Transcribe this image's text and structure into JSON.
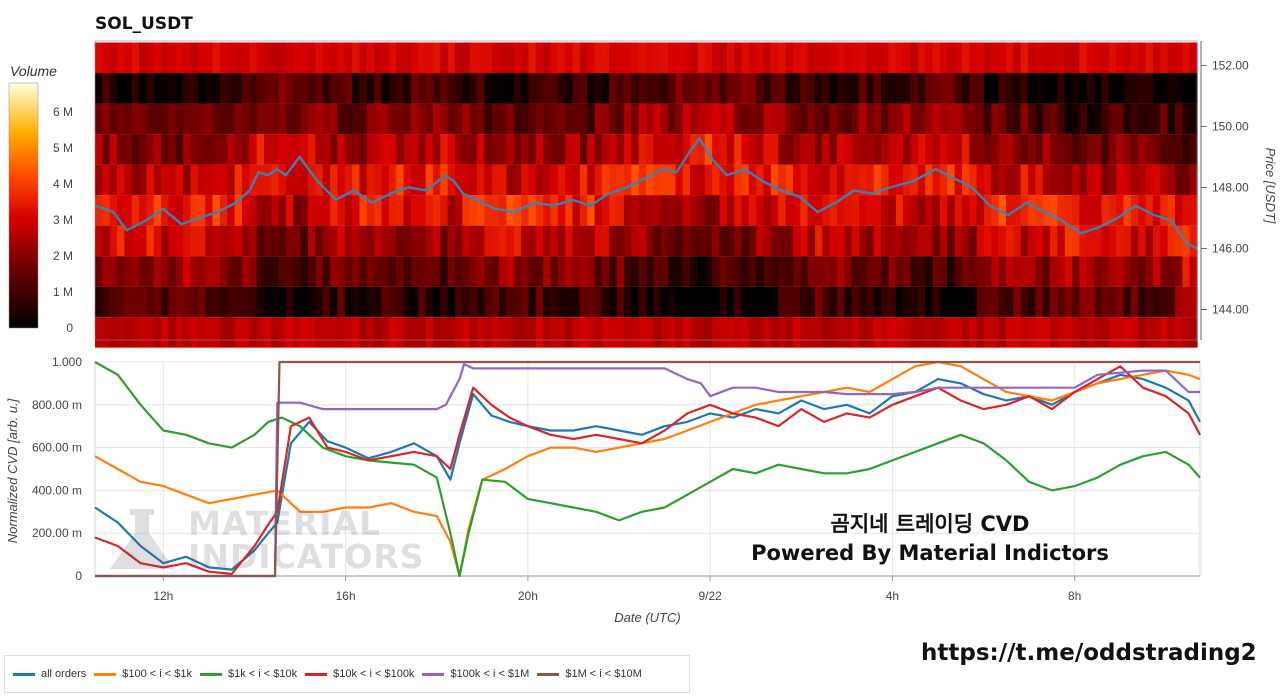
{
  "title": "SOL_USDT",
  "chart_data": [
    {
      "type": "heatmap",
      "title": "SOL_USDT",
      "colorbar": {
        "label": "Volume",
        "ticks": [
          "0",
          "1 M",
          "2 M",
          "3 M",
          "4 M",
          "5 M",
          "6 M"
        ],
        "range": [
          0,
          6800000
        ]
      },
      "y_axis": {
        "label": "Price [USDT]",
        "ticks": [
          "144.00",
          "146.00",
          "148.00",
          "150.00",
          "152.00"
        ],
        "range": [
          143.0,
          152.8
        ]
      },
      "price_bins": [
        143.25,
        144.25,
        145.25,
        146.25,
        147.25,
        148.25,
        149.25,
        150.25,
        151.25,
        152.25
      ],
      "x_range_hours": [
        10.5,
        34.75
      ],
      "series": [
        {
          "name": "price",
          "x": [
            10.5,
            10.9,
            11.2,
            11.6,
            12.0,
            12.4,
            12.8,
            13.2,
            13.6,
            13.9,
            14.1,
            14.3,
            14.5,
            14.7,
            15.0,
            15.4,
            15.8,
            16.2,
            16.6,
            17.0,
            17.4,
            17.8,
            18.2,
            18.4,
            18.6,
            18.9,
            19.3,
            19.7,
            20.2,
            20.6,
            21.0,
            21.4,
            21.8,
            22.2,
            22.6,
            23.0,
            23.3,
            23.6,
            23.8,
            24.1,
            24.4,
            24.8,
            25.2,
            25.6,
            26.0,
            26.4,
            26.8,
            27.2,
            27.6,
            28.0,
            28.5,
            29.0,
            29.4,
            29.8,
            30.2,
            30.6,
            31.0,
            31.4,
            31.8,
            32.2,
            32.6,
            33.0,
            33.4,
            33.8,
            34.2,
            34.5,
            34.75
          ],
          "values": [
            147.4,
            147.2,
            146.6,
            146.9,
            147.3,
            146.8,
            147.0,
            147.2,
            147.5,
            147.9,
            148.5,
            148.4,
            148.6,
            148.4,
            149.0,
            148.2,
            147.6,
            147.9,
            147.5,
            147.8,
            148.0,
            147.9,
            148.4,
            148.2,
            147.8,
            147.6,
            147.3,
            147.2,
            147.5,
            147.4,
            147.6,
            147.4,
            147.8,
            148.0,
            148.3,
            148.6,
            148.5,
            149.2,
            149.6,
            148.9,
            148.4,
            148.6,
            148.2,
            147.9,
            147.7,
            147.2,
            147.5,
            147.9,
            147.8,
            148.0,
            148.2,
            148.6,
            148.3,
            148.0,
            147.4,
            147.1,
            147.5,
            147.2,
            146.9,
            146.5,
            146.7,
            147.0,
            147.4,
            147.1,
            146.9,
            146.2,
            146.0
          ]
        }
      ]
    },
    {
      "type": "line",
      "x_axis": {
        "label": "Date (UTC)",
        "ticks": [
          "12h",
          "16h",
          "20h",
          "9/22",
          "4h",
          "8h"
        ],
        "tick_hours": [
          12,
          16,
          20,
          24,
          28,
          32
        ],
        "range": [
          10.5,
          34.75
        ]
      },
      "y_axis": {
        "label": "Normalized CVD [arb. u.]",
        "ticks": [
          "0",
          "200.00 m",
          "400.00 m",
          "600.00 m",
          "800.00 m",
          "1.000"
        ],
        "range": [
          0,
          1
        ]
      },
      "grid": true,
      "legend_position": "bottom-left",
      "series": [
        {
          "name": "all orders",
          "color": "#1f77b4",
          "x": [
            10.5,
            11.0,
            11.5,
            12.0,
            12.5,
            13.0,
            13.5,
            14.0,
            14.3,
            14.5,
            14.8,
            15.2,
            15.6,
            16.0,
            16.5,
            17.0,
            17.5,
            18.0,
            18.3,
            18.5,
            18.8,
            19.2,
            19.6,
            20.0,
            20.5,
            21.0,
            21.5,
            22.0,
            22.5,
            23.0,
            23.5,
            24.0,
            24.5,
            25.0,
            25.5,
            26.0,
            26.5,
            27.0,
            27.5,
            28.0,
            28.5,
            29.0,
            29.5,
            30.0,
            30.5,
            31.0,
            31.5,
            32.0,
            32.5,
            33.0,
            33.5,
            34.0,
            34.5,
            34.75
          ],
          "values": [
            0.32,
            0.25,
            0.14,
            0.06,
            0.09,
            0.04,
            0.03,
            0.12,
            0.2,
            0.25,
            0.62,
            0.72,
            0.63,
            0.6,
            0.55,
            0.58,
            0.62,
            0.56,
            0.45,
            0.62,
            0.85,
            0.75,
            0.72,
            0.7,
            0.68,
            0.68,
            0.7,
            0.68,
            0.66,
            0.7,
            0.72,
            0.76,
            0.74,
            0.78,
            0.76,
            0.82,
            0.78,
            0.8,
            0.76,
            0.84,
            0.86,
            0.92,
            0.9,
            0.85,
            0.82,
            0.84,
            0.8,
            0.86,
            0.9,
            0.94,
            0.92,
            0.88,
            0.82,
            0.72
          ]
        },
        {
          "name": "$100 < i < $1k",
          "color": "#ff7f0e",
          "x": [
            10.5,
            11.0,
            11.5,
            12.0,
            12.5,
            13.0,
            13.5,
            14.0,
            14.5,
            15.0,
            15.5,
            16.0,
            16.5,
            17.0,
            17.5,
            18.0,
            18.3,
            18.5,
            18.7,
            19.0,
            19.5,
            20.0,
            20.5,
            21.0,
            21.5,
            22.0,
            22.5,
            23.0,
            23.5,
            24.0,
            24.5,
            25.0,
            25.5,
            26.0,
            26.5,
            27.0,
            27.5,
            28.0,
            28.5,
            29.0,
            29.5,
            30.0,
            30.5,
            31.0,
            31.5,
            32.0,
            32.5,
            33.0,
            33.5,
            34.0,
            34.5,
            34.75
          ],
          "values": [
            0.56,
            0.5,
            0.44,
            0.42,
            0.38,
            0.34,
            0.36,
            0.38,
            0.4,
            0.3,
            0.3,
            0.32,
            0.32,
            0.34,
            0.3,
            0.28,
            0.16,
            0.0,
            0.22,
            0.45,
            0.5,
            0.56,
            0.6,
            0.6,
            0.58,
            0.6,
            0.62,
            0.64,
            0.68,
            0.72,
            0.76,
            0.8,
            0.82,
            0.84,
            0.86,
            0.88,
            0.86,
            0.92,
            0.98,
            1.0,
            0.98,
            0.92,
            0.86,
            0.84,
            0.82,
            0.86,
            0.9,
            0.92,
            0.94,
            0.96,
            0.94,
            0.92
          ]
        },
        {
          "name": "$1k < i < $10k",
          "color": "#2ca02c",
          "x": [
            10.5,
            11.0,
            11.5,
            12.0,
            12.5,
            13.0,
            13.5,
            14.0,
            14.3,
            14.6,
            15.0,
            15.5,
            16.0,
            16.5,
            17.0,
            17.5,
            18.0,
            18.3,
            18.5,
            18.7,
            19.0,
            19.5,
            20.0,
            20.5,
            21.0,
            21.5,
            22.0,
            22.5,
            23.0,
            23.5,
            24.0,
            24.5,
            25.0,
            25.5,
            26.0,
            26.5,
            27.0,
            27.5,
            28.0,
            28.5,
            29.0,
            29.5,
            30.0,
            30.5,
            31.0,
            31.5,
            32.0,
            32.5,
            33.0,
            33.5,
            34.0,
            34.5,
            34.75
          ],
          "values": [
            1.0,
            0.94,
            0.8,
            0.68,
            0.66,
            0.62,
            0.6,
            0.66,
            0.72,
            0.74,
            0.7,
            0.6,
            0.56,
            0.54,
            0.53,
            0.52,
            0.46,
            0.2,
            0.0,
            0.2,
            0.45,
            0.44,
            0.36,
            0.34,
            0.32,
            0.3,
            0.26,
            0.3,
            0.32,
            0.38,
            0.44,
            0.5,
            0.48,
            0.52,
            0.5,
            0.48,
            0.48,
            0.5,
            0.54,
            0.58,
            0.62,
            0.66,
            0.62,
            0.54,
            0.44,
            0.4,
            0.42,
            0.46,
            0.52,
            0.56,
            0.58,
            0.52,
            0.46
          ]
        },
        {
          "name": "$10k < i < $100k",
          "color": "#d62728",
          "x": [
            10.5,
            11.0,
            11.5,
            12.0,
            12.5,
            13.0,
            13.5,
            14.0,
            14.3,
            14.5,
            14.8,
            15.2,
            15.6,
            16.0,
            16.5,
            17.0,
            17.5,
            18.0,
            18.3,
            18.5,
            18.8,
            19.2,
            19.6,
            20.0,
            20.5,
            21.0,
            21.5,
            22.0,
            22.5,
            23.0,
            23.5,
            24.0,
            24.5,
            25.0,
            25.5,
            26.0,
            26.5,
            27.0,
            27.5,
            28.0,
            28.5,
            29.0,
            29.5,
            30.0,
            30.5,
            31.0,
            31.5,
            32.0,
            32.5,
            33.0,
            33.5,
            34.0,
            34.5,
            34.75
          ],
          "values": [
            0.18,
            0.14,
            0.06,
            0.04,
            0.06,
            0.02,
            0.01,
            0.14,
            0.24,
            0.3,
            0.7,
            0.74,
            0.6,
            0.58,
            0.54,
            0.56,
            0.58,
            0.56,
            0.5,
            0.66,
            0.88,
            0.8,
            0.74,
            0.7,
            0.66,
            0.64,
            0.66,
            0.64,
            0.62,
            0.68,
            0.76,
            0.8,
            0.76,
            0.74,
            0.7,
            0.78,
            0.72,
            0.76,
            0.74,
            0.8,
            0.84,
            0.88,
            0.82,
            0.78,
            0.8,
            0.84,
            0.78,
            0.86,
            0.92,
            0.98,
            0.88,
            0.84,
            0.76,
            0.66
          ]
        },
        {
          "name": "$100k < i < $1M",
          "color": "#9467bd",
          "x": [
            10.5,
            14.45,
            14.5,
            15.0,
            15.5,
            16.0,
            16.5,
            17.0,
            17.5,
            18.0,
            18.2,
            18.5,
            18.6,
            18.8,
            19.5,
            20.0,
            21.0,
            22.0,
            23.0,
            23.5,
            23.8,
            24.0,
            24.5,
            25.0,
            25.5,
            26.0,
            26.5,
            27.0,
            28.0,
            28.5,
            29.0,
            30.0,
            31.0,
            31.5,
            32.0,
            32.5,
            33.0,
            33.5,
            34.0,
            34.5,
            34.75
          ],
          "values": [
            0.0,
            0.0,
            0.81,
            0.81,
            0.78,
            0.78,
            0.78,
            0.78,
            0.78,
            0.78,
            0.8,
            0.92,
            0.99,
            0.97,
            0.97,
            0.97,
            0.97,
            0.97,
            0.97,
            0.92,
            0.9,
            0.84,
            0.88,
            0.88,
            0.86,
            0.86,
            0.86,
            0.85,
            0.85,
            0.86,
            0.88,
            0.88,
            0.88,
            0.88,
            0.88,
            0.94,
            0.95,
            0.96,
            0.96,
            0.86,
            0.86
          ]
        },
        {
          "name": "$1M < i < $10M",
          "color": "#8c564b",
          "x": [
            10.5,
            14.45,
            14.55,
            34.75
          ],
          "values": [
            0.0,
            0.0,
            1.0,
            1.0
          ]
        }
      ]
    }
  ],
  "overlay": {
    "line1": "곰지네 트레이딩 CVD",
    "line2": "Powered By Material Indictors"
  },
  "watermark": {
    "line1": "MATERIAL",
    "line2": "INDICATORS"
  },
  "telegram_link": "https://t.me/oddstrading2"
}
